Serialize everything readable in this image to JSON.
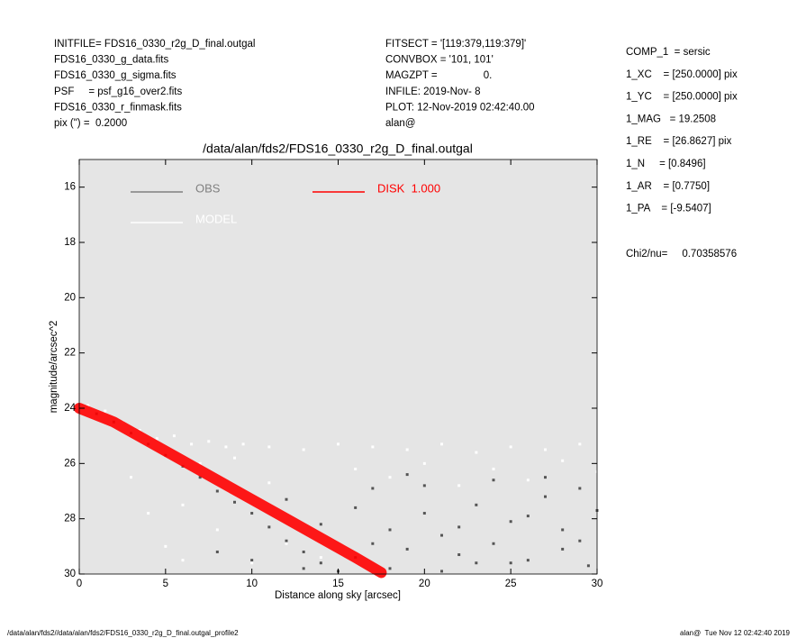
{
  "chart_data": {
    "type": "scatter",
    "title": "/data/alan/fds2/FDS16_0330_r2g_D_final.outgal",
    "x_label": "Distance along sky [arcsec]",
    "y_label": "magnitude/arcsec^2",
    "xlim": [
      0,
      30
    ],
    "ylim": [
      30,
      15
    ],
    "xticks": [
      0,
      5,
      10,
      15,
      20,
      25,
      30
    ],
    "yticks": [
      16,
      18,
      20,
      22,
      24,
      26,
      28,
      30
    ],
    "series": [
      {
        "name": "OBS",
        "color": "#808080",
        "marker_color": "#555555",
        "x": [
          1,
          2,
          3,
          4,
          5,
          6,
          7,
          8,
          9,
          10,
          11,
          12,
          13,
          14,
          15,
          16,
          17,
          18,
          19,
          20,
          21,
          22,
          23,
          24,
          25,
          26,
          27,
          28,
          29,
          29.5,
          12,
          14,
          16,
          18,
          20,
          22,
          24,
          26,
          28,
          30,
          10,
          13,
          17,
          21,
          25,
          29,
          8,
          19,
          23,
          27
        ],
        "y": [
          24.2,
          24.5,
          24.9,
          25.3,
          25.7,
          26.1,
          26.5,
          27.0,
          27.4,
          27.8,
          28.3,
          28.8,
          29.2,
          29.6,
          29.9,
          29.4,
          28.9,
          28.4,
          29.1,
          27.8,
          28.6,
          29.3,
          27.5,
          28.9,
          28.1,
          29.5,
          27.2,
          28.4,
          26.9,
          29.7,
          27.3,
          28.2,
          27.6,
          29.8,
          26.8,
          28.3,
          26.6,
          27.9,
          29.1,
          27.7,
          29.5,
          29.8,
          26.9,
          29.9,
          29.6,
          28.8,
          29.2,
          26.4,
          29.6,
          26.5
        ]
      },
      {
        "name": "MODEL",
        "color": "#ffffff",
        "marker_color": "#ffffff",
        "x": [
          0.5,
          1.5,
          2.5,
          3.5,
          4.5,
          5.5,
          6.5,
          7.5,
          8.5,
          9.5,
          11,
          13,
          15,
          17,
          19,
          21,
          23,
          25,
          27,
          29,
          6,
          8,
          10,
          12,
          14,
          16,
          18,
          20,
          22,
          24,
          26,
          28,
          30,
          3,
          4,
          5,
          6,
          7,
          9,
          11
        ],
        "y": [
          23.9,
          24.1,
          24.5,
          24.8,
          25.1,
          25.0,
          25.3,
          25.2,
          25.4,
          25.3,
          25.4,
          25.5,
          25.3,
          25.4,
          25.5,
          25.3,
          25.6,
          25.4,
          25.5,
          25.3,
          27.5,
          28.4,
          29.6,
          28.9,
          29.4,
          26.2,
          26.5,
          26.0,
          26.8,
          26.2,
          26.6,
          25.9,
          26.3,
          26.5,
          27.8,
          29.0,
          29.5,
          26.0,
          25.8,
          26.7
        ]
      },
      {
        "name": "DISK  1.000",
        "color": "#ff0000",
        "line": true,
        "x": [
          0,
          2,
          4,
          6,
          8,
          10,
          12,
          14,
          16,
          17.5
        ],
        "y": [
          24.0,
          24.5,
          25.2,
          25.9,
          26.6,
          27.3,
          28.0,
          28.7,
          29.4,
          29.95
        ]
      }
    ],
    "annotations": [
      "INITFILE= FDS16_0330_r2g_D_final.outgal",
      "FDS16_0330_g_data.fits",
      "FDS16_0330_g_sigma.fits",
      "PSF     = psf_g16_over2.fits",
      "FDS16_0330_r_finmask.fits",
      "pix (\") =  0.2000",
      "FITSECT = '[119:379,119:379]'",
      "CONVBOX = '101, 101'",
      "MAGZPT =                0.",
      "INFILE: 2019-Nov- 8",
      "PLOT: 12-Nov-2019 02:42:40.00",
      "alan@",
      "COMP_1  = sersic",
      "1_XC    = [250.0000] pix",
      "1_YC    = [250.0000] pix",
      "1_MAG   = 19.2508",
      "1_RE    = [26.8627] pix",
      "1_N     = [0.8496]",
      "1_AR    = [0.7750]",
      "1_PA    = [-9.5407]",
      "Chi2/nu=     0.70358576"
    ],
    "footer": [
      "/data/alan/fds2//data/alan/fds2/FDS16_0330_r2g_D_final.outgal_profile2",
      "alan@  Tue Nov 12 02:42:40 2019"
    ]
  }
}
